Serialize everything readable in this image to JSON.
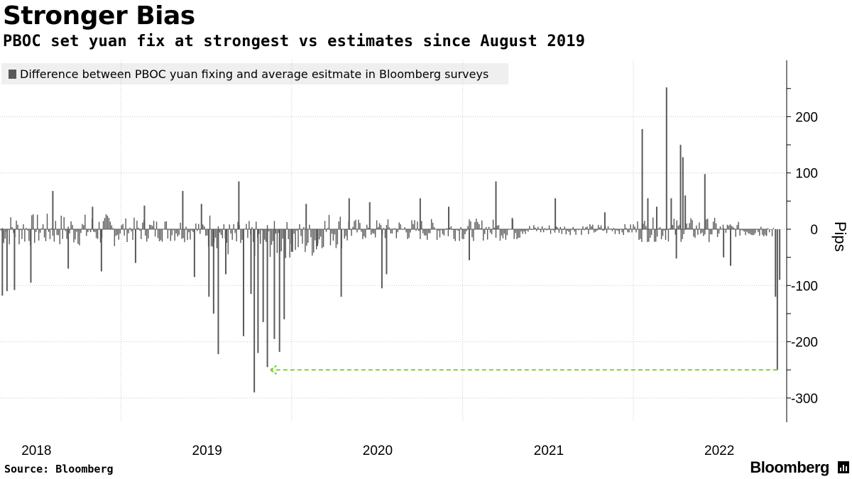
{
  "title": "Stronger Bias",
  "subtitle": "PBOC set yuan fix at strongest vs estimates since August 2019",
  "legend": {
    "label": "Difference between PBOC yuan fixing and average esitmate in Bloomberg surveys"
  },
  "source": "Source: Bloomberg",
  "brand": "Bloomberg",
  "colors": {
    "bar": "#595959",
    "arrow": "#7fd23a",
    "grid": "#c8c8c8"
  },
  "chart_data": {
    "type": "bar",
    "title": "Stronger Bias",
    "subtitle": "PBOC set yuan fix at strongest vs estimates since August 2019",
    "ylabel": "Pips",
    "ylim": [
      -345,
      300
    ],
    "yticks": [
      200,
      100,
      0,
      -100,
      -200,
      -300
    ],
    "ytick_labels": [
      "200",
      "100",
      "0",
      "-100",
      "-200",
      "-300"
    ],
    "xlim": [
      "2017-10-15",
      "2022-05-25"
    ],
    "xtick_labels": [
      {
        "label": "2018",
        "date": "2018-01-01"
      },
      {
        "label": "2019",
        "date": "2019-01-01"
      },
      {
        "label": "2020",
        "date": "2020-01-01"
      },
      {
        "label": "2021",
        "date": "2021-01-01"
      },
      {
        "label": "2022",
        "date": "2022-01-01"
      }
    ],
    "x_gridlines": [
      "2018-07-01",
      "2019-07-01",
      "2020-07-01",
      "2021-07-01"
    ],
    "legend_position": "top-left",
    "series": [
      {
        "name": "Difference between PBOC yuan fixing and average esitmate in Bloomberg surveys",
        "points": [
          [
            "2017-10-20",
            -118
          ],
          [
            "2017-10-30",
            -110
          ],
          [
            "2017-11-15",
            -108
          ],
          [
            "2017-12-20",
            -95
          ],
          [
            "2018-02-05",
            68
          ],
          [
            "2018-03-10",
            -70
          ],
          [
            "2018-05-01",
            40
          ],
          [
            "2018-05-20",
            -75
          ],
          [
            "2018-08-01",
            -60
          ],
          [
            "2018-08-20",
            42
          ],
          [
            "2018-11-10",
            68
          ],
          [
            "2018-12-05",
            -85
          ],
          [
            "2018-12-20",
            45
          ],
          [
            "2019-01-05",
            -120
          ],
          [
            "2019-01-15",
            -150
          ],
          [
            "2019-01-25",
            -222
          ],
          [
            "2019-02-10",
            -80
          ],
          [
            "2019-03-10",
            85
          ],
          [
            "2019-03-20",
            -190
          ],
          [
            "2019-04-05",
            -115
          ],
          [
            "2019-04-12",
            -290
          ],
          [
            "2019-04-20",
            -220
          ],
          [
            "2019-05-01",
            -165
          ],
          [
            "2019-05-10",
            -245
          ],
          [
            "2019-05-25",
            -195
          ],
          [
            "2019-06-05",
            -218
          ],
          [
            "2019-06-15",
            -160
          ],
          [
            "2019-07-01",
            -40
          ],
          [
            "2019-08-01",
            45
          ],
          [
            "2019-08-25",
            -30
          ],
          [
            "2019-10-15",
            -120
          ],
          [
            "2019-11-01",
            55
          ],
          [
            "2019-12-15",
            48
          ],
          [
            "2020-01-10",
            -105
          ],
          [
            "2020-01-20",
            -80
          ],
          [
            "2020-04-01",
            55
          ],
          [
            "2020-06-01",
            40
          ],
          [
            "2020-07-15",
            -55
          ],
          [
            "2020-09-10",
            85
          ],
          [
            "2020-10-15",
            20
          ],
          [
            "2021-01-15",
            55
          ],
          [
            "2021-05-01",
            30
          ],
          [
            "2021-07-20",
            178
          ],
          [
            "2021-08-01",
            55
          ],
          [
            "2021-08-20",
            40
          ],
          [
            "2021-09-10",
            252
          ],
          [
            "2021-09-20",
            55
          ],
          [
            "2021-10-01",
            -52
          ],
          [
            "2021-10-10",
            150
          ],
          [
            "2021-10-15",
            128
          ],
          [
            "2021-10-20",
            60
          ],
          [
            "2021-12-01",
            98
          ],
          [
            "2022-01-10",
            -50
          ],
          [
            "2022-01-25",
            -65
          ],
          [
            "2022-05-01",
            -120
          ],
          [
            "2022-05-05",
            -250
          ],
          [
            "2022-05-10",
            -90
          ]
        ]
      }
    ],
    "annotation": {
      "type": "arrow",
      "value": -250,
      "from": "2022-05-05",
      "to": "2019-05-01"
    }
  }
}
